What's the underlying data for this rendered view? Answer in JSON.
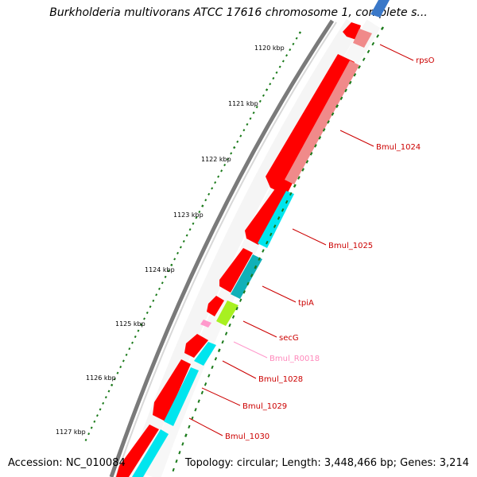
{
  "title": "Burkholderia multivorans ATCC 17616 chromosome 1, complete s...",
  "footer": {
    "accession": "Accession: NC_010084",
    "topology": "Topology: circular; Length: 3,448,466 bp; Genes: 3,214"
  },
  "ticks": [
    {
      "label": "1120 kbp"
    },
    {
      "label": "1121 kbp"
    },
    {
      "label": "1122 kbp"
    },
    {
      "label": "1123 kbp"
    },
    {
      "label": "1124 kbp"
    },
    {
      "label": "1125 kbp"
    },
    {
      "label": "1126 kbp"
    },
    {
      "label": "1127 kbp"
    }
  ],
  "genes": [
    {
      "label": "rpsO",
      "type": "cds"
    },
    {
      "label": "Bmul_1024",
      "type": "cds"
    },
    {
      "label": "Bmul_1025",
      "type": "cds"
    },
    {
      "label": "tpiA",
      "type": "cds"
    },
    {
      "label": "secG",
      "type": "cds"
    },
    {
      "label": "Bmul_R0018",
      "type": "rna"
    },
    {
      "label": "Bmul_1028",
      "type": "cds"
    },
    {
      "label": "Bmul_1029",
      "type": "cds"
    },
    {
      "label": "Bmul_1030",
      "type": "cds"
    }
  ],
  "colors": {
    "cds": "#ff0000",
    "rna": "#ff99cc",
    "backbone": "#8c8c8c",
    "tick": "#1a7a1a",
    "cog_pink": "#f08a8a",
    "cog_cyan": "#00e5ee",
    "cog_teal": "#10b0b8",
    "cog_lime": "#a8f020",
    "cog_blue": "#3a78c8"
  }
}
